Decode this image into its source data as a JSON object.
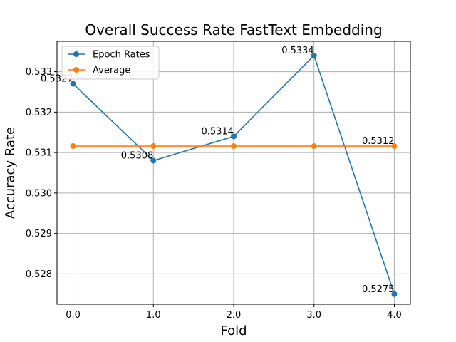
{
  "chart_data": {
    "type": "line",
    "title": "Overall Success Rate FastText Embedding",
    "xlabel": "Fold",
    "ylabel": "Accuracy Rate",
    "x": [
      0,
      1,
      2,
      3,
      4
    ],
    "xticks": [
      "0.0",
      "1.0",
      "2.0",
      "3.0",
      "4.0"
    ],
    "yticks": [
      "0.528",
      "0.529",
      "0.530",
      "0.531",
      "0.532",
      "0.533"
    ],
    "ytick_values": [
      0.528,
      0.529,
      0.53,
      0.531,
      0.532,
      0.533
    ],
    "xlim": [
      -0.2,
      4.2
    ],
    "ylim": [
      0.52725,
      0.53375
    ],
    "grid": true,
    "legend_position": "top-left",
    "series": [
      {
        "name": "Epoch Rates",
        "color": "#1f77b4",
        "values": [
          0.5327,
          0.5308,
          0.5314,
          0.5334,
          0.5275
        ],
        "labels": [
          "0.5327",
          "0.5308",
          "0.5314",
          "0.5334",
          "0.5275"
        ]
      },
      {
        "name": "Average",
        "color": "#ff7f0e",
        "values": [
          0.53116,
          0.53116,
          0.53116,
          0.53116,
          0.53116
        ],
        "labels": [
          "",
          "",
          "",
          "",
          "0.5312"
        ]
      }
    ]
  }
}
